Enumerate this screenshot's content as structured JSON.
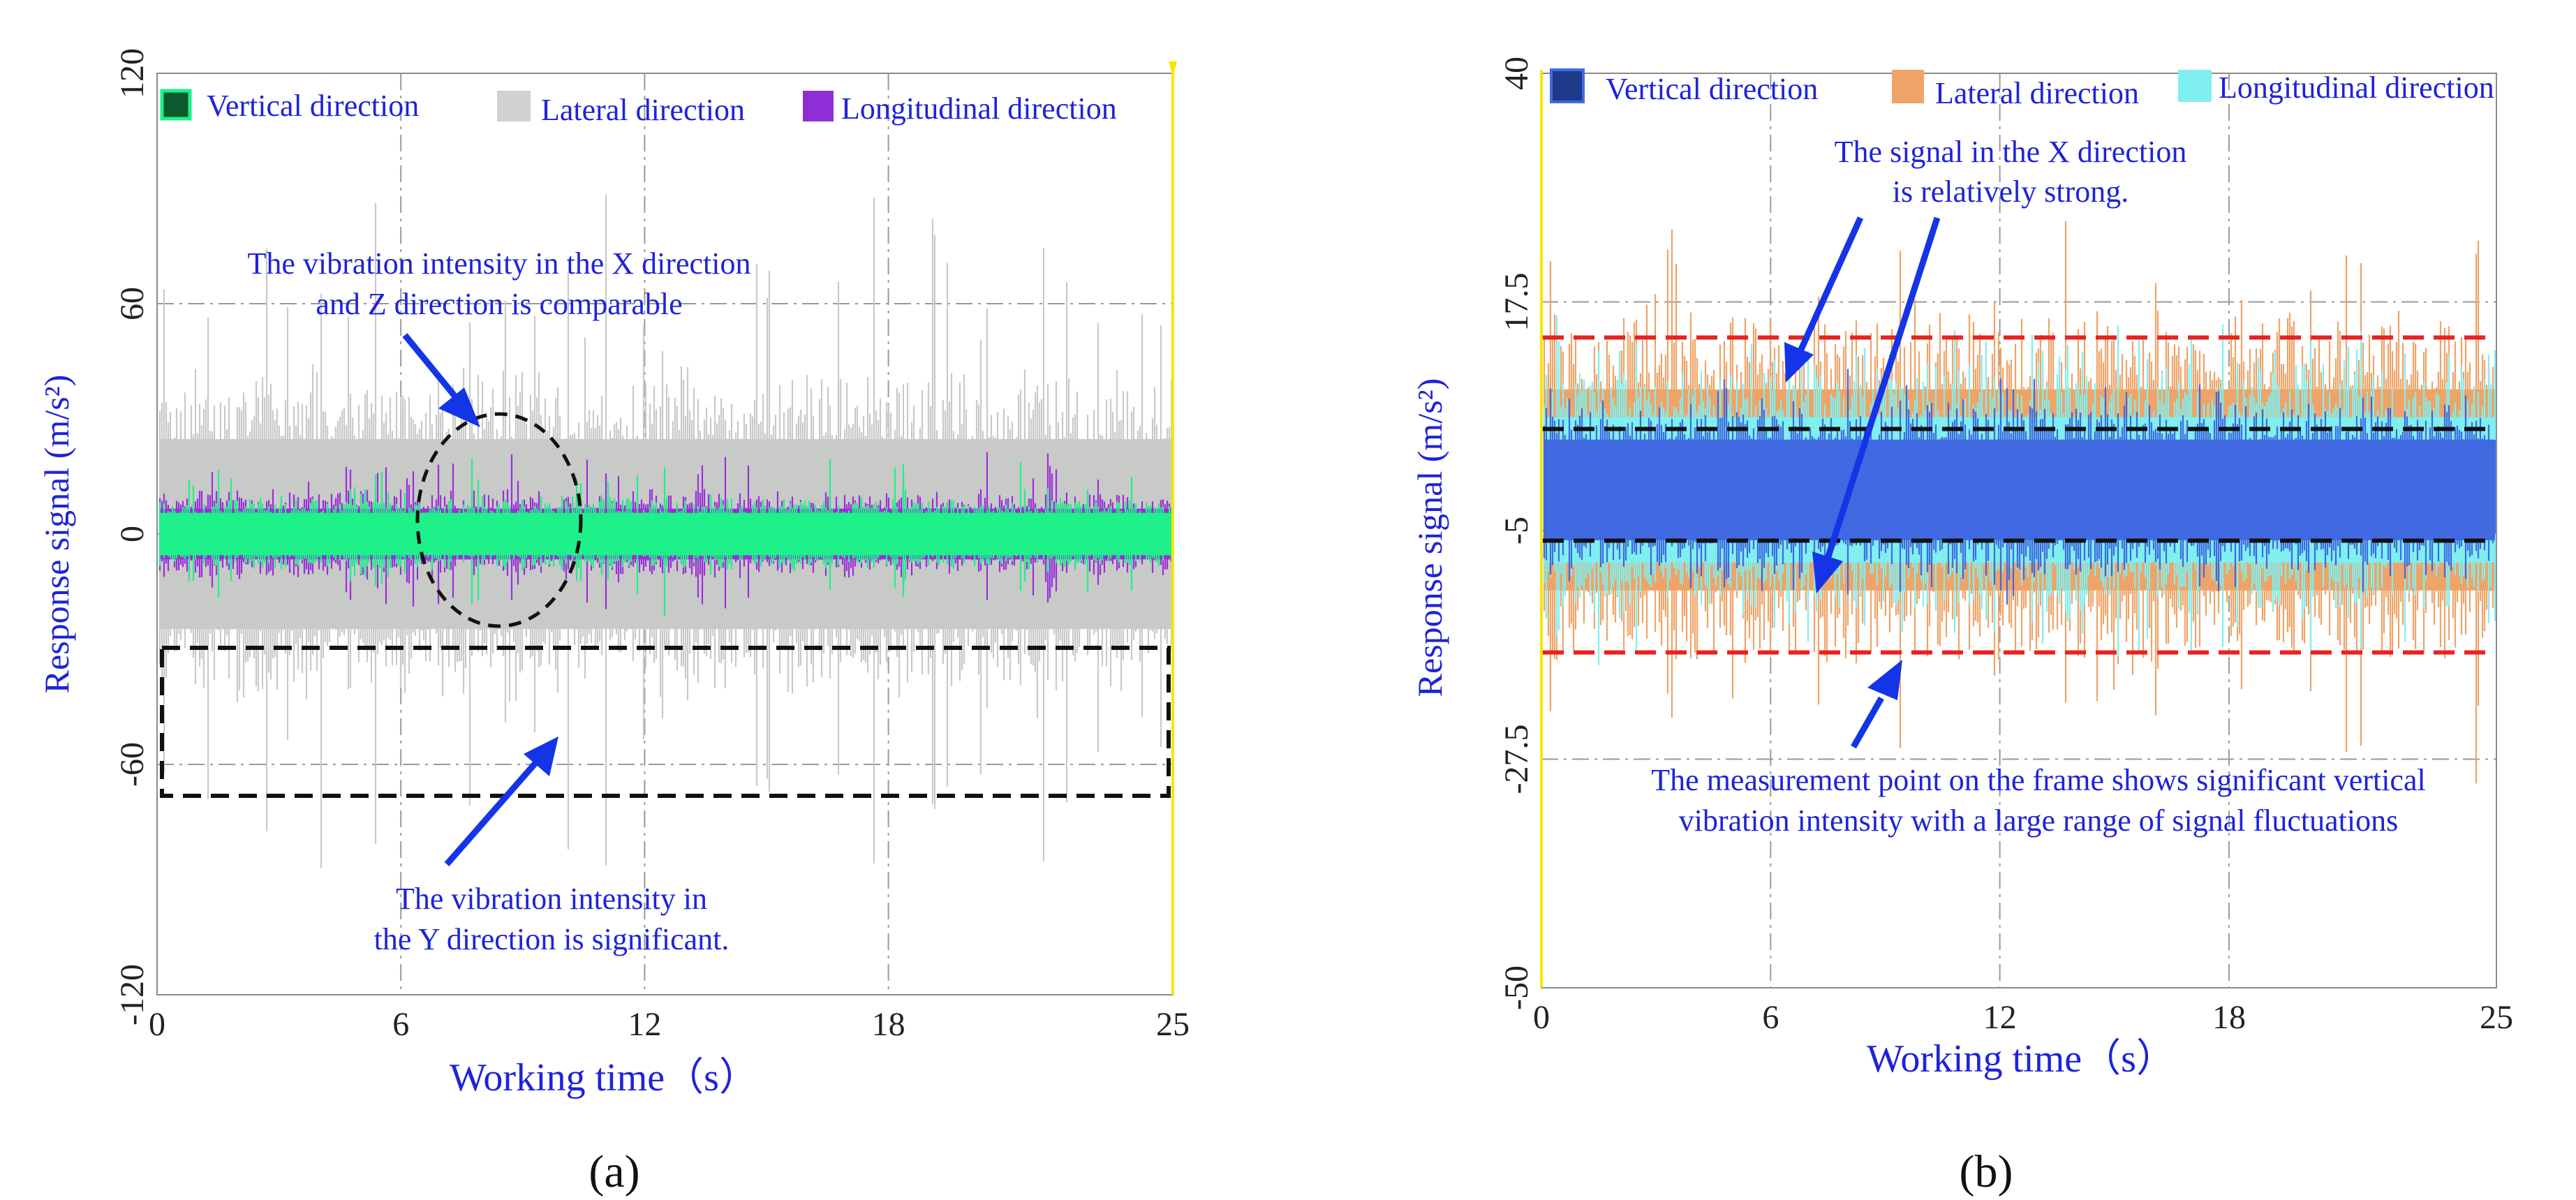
{
  "chart_data": [
    {
      "type": "line",
      "panel_label": "(a)",
      "xlabel": "Working time（s）",
      "ylabel": "Response signal (m/s²)",
      "xlim": [
        0,
        25
      ],
      "ylim": [
        -120,
        120
      ],
      "x_ticks": [
        0,
        6,
        12,
        18,
        25
      ],
      "x_tick_labels": [
        "0",
        "6",
        "12",
        "18",
        "25"
      ],
      "y_ticks": [
        -120,
        -60,
        0,
        60,
        120
      ],
      "y_tick_labels": [
        "-120",
        "-60",
        "0",
        "60",
        "120"
      ],
      "grid": true,
      "series": [
        {
          "name": "Lateral direction",
          "color": "#c8cac8",
          "center": 0,
          "typical_amplitude": 45,
          "peak_amplitude": 100
        },
        {
          "name": "Longitudinal direction",
          "color": "#9a2fd8",
          "center": 0,
          "typical_amplitude": 12,
          "peak_amplitude": 25
        },
        {
          "name": "Vertical direction",
          "color": "#1ef08a",
          "center": 0,
          "typical_amplitude": 10,
          "peak_amplitude": 22
        }
      ],
      "legend": [
        {
          "label": "Vertical direction",
          "color": "#0b5a2e"
        },
        {
          "label": "Lateral direction",
          "color": "#cfd2cf"
        },
        {
          "label": "Longitudinal direction",
          "color": "#8e2fd6"
        }
      ],
      "annotations": [
        {
          "lines": [
            "The vibration intensity in the X direction",
            "and Z direction is comparable"
          ]
        },
        {
          "lines": [
            "The vibration intensity in",
            "the Y direction is significant."
          ]
        }
      ]
    },
    {
      "type": "line",
      "panel_label": "(b)",
      "xlabel": "Working time（s）",
      "ylabel": "Response signal (m/s²)",
      "xlim": [
        0,
        25
      ],
      "ylim": [
        -50,
        40
      ],
      "x_ticks": [
        0,
        6,
        12,
        18,
        25
      ],
      "x_tick_labels": [
        "0",
        "6",
        "12",
        "18",
        "25"
      ],
      "y_ticks": [
        -50,
        -27.5,
        -5,
        17.5,
        40
      ],
      "y_tick_labels": [
        "-50",
        "-27.5",
        "-5",
        "17.5",
        "40"
      ],
      "grid": true,
      "series": [
        {
          "name": "Lateral direction",
          "color": "#eea468",
          "center": -1,
          "typical_amplitude": 18,
          "peak_amplitude": 30
        },
        {
          "name": "Longitudinal direction",
          "color": "#7fefef",
          "center": -1,
          "typical_amplitude": 13,
          "peak_amplitude": 18
        },
        {
          "name": "Vertical direction",
          "color": "#4169e1",
          "center": -1,
          "typical_amplitude": 9,
          "peak_amplitude": 12
        }
      ],
      "reference_lines": [
        {
          "y": 14,
          "color": "#e8221e"
        },
        {
          "y": 5,
          "color": "#111111"
        },
        {
          "y": -6,
          "color": "#111111"
        },
        {
          "y": -17,
          "color": "#e8221e"
        }
      ],
      "legend": [
        {
          "label": "Vertical direction",
          "color": "#1f3a8a"
        },
        {
          "label": "Lateral direction",
          "color": "#eea468"
        },
        {
          "label": "Longitudinal direction",
          "color": "#7fefef"
        }
      ],
      "annotations": [
        {
          "lines": [
            "The signal in the X direction",
            "is relatively strong."
          ]
        },
        {
          "lines": [
            "The measurement point on the frame shows significant vertical",
            "vibration intensity with a large range of signal fluctuations"
          ]
        }
      ]
    }
  ]
}
